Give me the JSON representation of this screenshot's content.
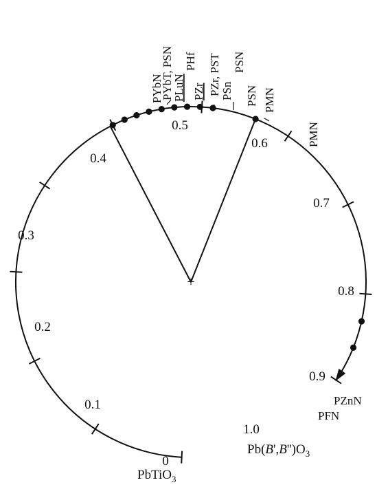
{
  "diagram": {
    "colors": {
      "ink": "#111111",
      "background": "#ffffff"
    },
    "scale_ticks": [
      "0",
      "0.1",
      "0.2",
      "0.3",
      "0.4",
      "0.5",
      "0.6",
      "0.7",
      "0.8",
      "0.9",
      "1.0"
    ],
    "origin_marker": "+",
    "endpoints": {
      "start": {
        "base": "PbTiO",
        "sub": "3"
      },
      "end": {
        "prefix": "Pb(",
        "b1": "B",
        "mid": "',",
        "b2": "B",
        "suffix": "'')O",
        "sub": "3"
      }
    },
    "point_labels": [
      "PYbN",
      "PYbT, PSN",
      "PLuN",
      "PHf",
      "PZr",
      "PZr, PST",
      "PSn",
      "PSN",
      "PSN",
      "PMN",
      "PMN",
      "PZnN",
      "PFN"
    ],
    "points": {
      "cluster_count": 9,
      "highlight_value": 0.66,
      "lower_values": [
        0.93,
        0.96
      ]
    }
  }
}
